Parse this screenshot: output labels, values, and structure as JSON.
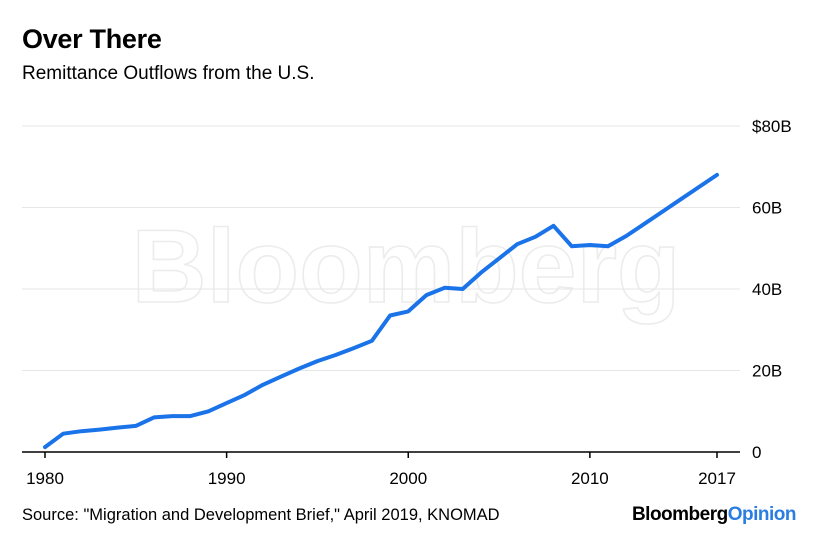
{
  "title": "Over There",
  "subtitle": "Remittance Outflows from the U.S.",
  "source": "Source: \"Migration and Development Brief,\" April 2019, KNOMAD",
  "brand": {
    "part1": "Bloomberg",
    "part2": "Opinion"
  },
  "watermark": "Bloomberg",
  "colors": {
    "line": "#1a73e8",
    "grid": "#e6e6e6",
    "axis": "#000000",
    "brand_accent": "#2a7de1"
  },
  "chart_data": {
    "type": "line",
    "title": "Over There",
    "subtitle": "Remittance Outflows from the U.S.",
    "xlabel": "",
    "ylabel": "",
    "xlim": [
      1980,
      2017
    ],
    "ylim": [
      0,
      80
    ],
    "grid": true,
    "x_ticks": [
      {
        "value": 1980,
        "label": "1980"
      },
      {
        "value": 1990,
        "label": "1990"
      },
      {
        "value": 2000,
        "label": "2000"
      },
      {
        "value": 2010,
        "label": "2010"
      },
      {
        "value": 2017,
        "label": "2017"
      }
    ],
    "y_ticks": [
      {
        "value": 0,
        "label": "0"
      },
      {
        "value": 20,
        "label": "20B"
      },
      {
        "value": 40,
        "label": "40B"
      },
      {
        "value": 60,
        "label": "60B"
      },
      {
        "value": 80,
        "label": "$80B"
      }
    ],
    "series": [
      {
        "x": [
          1980,
          1981,
          1982,
          1983,
          1984,
          1985,
          1986,
          1987,
          1988,
          1989,
          1990,
          1991,
          1992,
          1993,
          1994,
          1995,
          1996,
          1997,
          1998,
          1999,
          2000,
          2001,
          2002,
          2003,
          2004,
          2005,
          2006,
          2007,
          2008,
          2009,
          2010,
          2011,
          2012,
          2013,
          2014,
          2015,
          2016,
          2017
        ],
        "values": [
          1.2,
          4.5,
          5.1,
          5.5,
          6.0,
          6.4,
          8.5,
          8.8,
          8.8,
          10.0,
          12.0,
          14.0,
          16.5,
          18.5,
          20.5,
          22.3,
          23.8,
          25.5,
          27.3,
          33.5,
          34.5,
          38.5,
          40.3,
          40.0,
          44.0,
          47.5,
          51.0,
          52.8,
          55.5,
          50.5,
          50.8,
          50.5,
          53.0,
          56.0,
          59.0,
          62.0,
          65.0,
          68.0
        ]
      }
    ]
  }
}
